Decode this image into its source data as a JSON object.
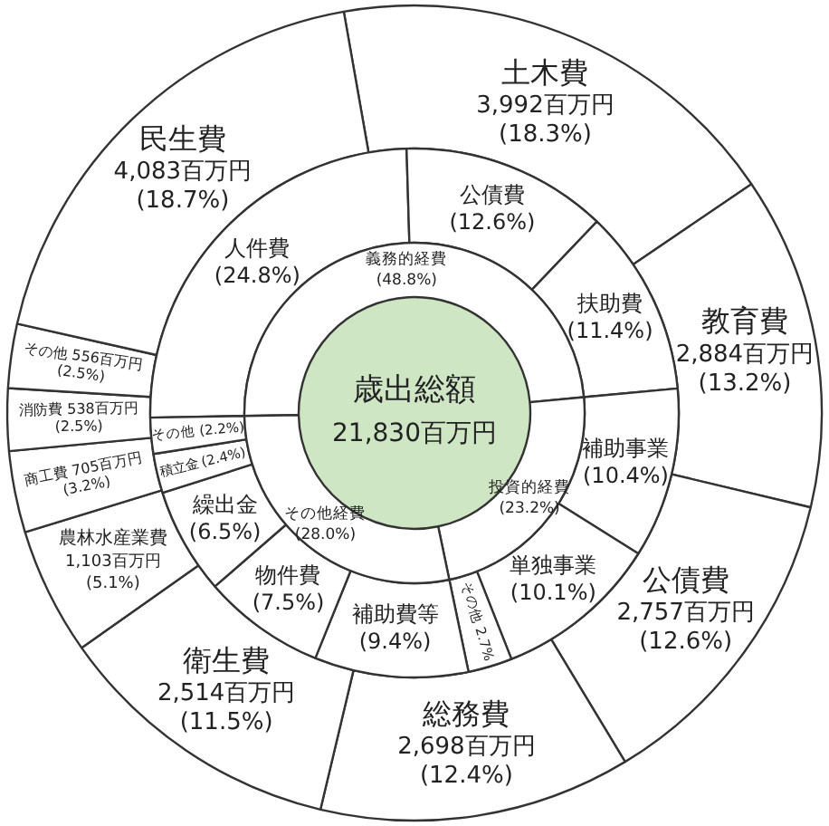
{
  "chart_data": [
    {
      "type": "donut",
      "categories": [
        "土木費",
        "教育費",
        "公債費",
        "総務費",
        "衛生費",
        "農林水産業費",
        "商工費",
        "消防費",
        "その他",
        "民生費"
      ],
      "values": [
        3992,
        2884,
        2757,
        2698,
        2514,
        1103,
        705,
        538,
        556,
        4083
      ],
      "value_labels": [
        "3,992百万円\n(18.3%)",
        "2,884百万円\n(13.2%)",
        "2,757百万円\n(12.6%)",
        "2,698百万円\n(12.4%)",
        "2,514百万円\n(11.5%)",
        "1,103百万円\n(5.1%)",
        "705百万円\n(3.2%)",
        "538百万円\n(2.5%)",
        "556百万円\n(2.5%)",
        "4,083百万円\n(18.7%)"
      ],
      "colors": [
        "#ffffff",
        "#ffffff",
        "#ffffff",
        "#ffffff",
        "#ffffff",
        "#ffffff",
        "#ffffff",
        "#ffffff",
        "#ffffff",
        "#ffffff"
      ]
    },
    {
      "type": "donut",
      "categories": [
        "人件費",
        "公債費",
        "扶助費",
        "補助事業",
        "単独事業",
        "その他",
        "補助費等",
        "物件費",
        "繰出金",
        "積立金",
        "その他"
      ],
      "values": [
        24.8,
        12.6,
        11.4,
        10.4,
        10.1,
        2.7,
        9.4,
        7.5,
        6.5,
        2.4,
        2.2
      ],
      "value_labels": [
        "(24.8%)",
        "(12.6%)",
        "(11.4%)",
        "(10.4%)",
        "(10.1%)",
        "2.7%",
        "(9.4%)",
        "(7.5%)",
        "(6.5%)",
        "(2.4%)",
        "(2.2%)"
      ],
      "colors": [
        "#ffffff",
        "#ffffff",
        "#ffffff",
        "#ffffff",
        "#ffffff",
        "#ffffff",
        "#ffffff",
        "#ffffff",
        "#ffffff",
        "#ffffff",
        "#ffffff"
      ]
    },
    {
      "type": "donut",
      "categories": [
        "義務的経費",
        "投資的経費",
        "その他経費"
      ],
      "values": [
        48.8,
        23.2,
        28.0
      ],
      "value_labels": [
        "(48.8%)",
        "(23.2%)",
        "(28.0%)"
      ],
      "colors": [
        "#ffffff",
        "#ffffff",
        "#ffffff"
      ],
      "annotations": [
        "歳出総額",
        "21,830百万円"
      ]
    }
  ]
}
